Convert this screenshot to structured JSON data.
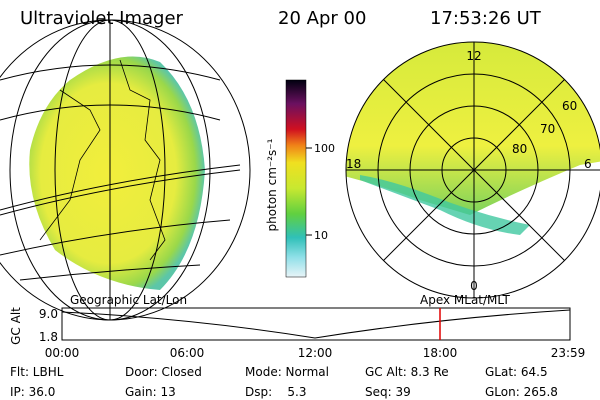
{
  "header": {
    "title": "Ultraviolet Imager",
    "date": "20 Apr 00",
    "time": "17:53:26 UT"
  },
  "colorbar": {
    "label": "photon cm⁻²s⁻¹",
    "ticks": [
      "100",
      "10"
    ]
  },
  "polar": {
    "mlt_labels": [
      "12",
      "18",
      "6",
      "0"
    ],
    "lat_labels": [
      "60",
      "70",
      "80"
    ]
  },
  "timeline": {
    "left_label": "Geographic Lat/Lon",
    "right_label": "Apex MLat/MLT",
    "axis_label": "GC Alt",
    "yticks": [
      "9.0",
      "1.8"
    ],
    "xticks": [
      "00:00",
      "06:00",
      "12:00",
      "18:00",
      "23:59"
    ]
  },
  "footer": {
    "rows": [
      [
        "Flt: LBHL",
        "Door: Closed",
        "Mode: Normal",
        "GC Alt: 8.3 Re",
        "GLat: 64.5"
      ],
      [
        "IP: 36.0",
        "Gain: 13",
        "Dsp:    5.3",
        "Seq: 39",
        "GLon: 265.8"
      ]
    ]
  }
}
